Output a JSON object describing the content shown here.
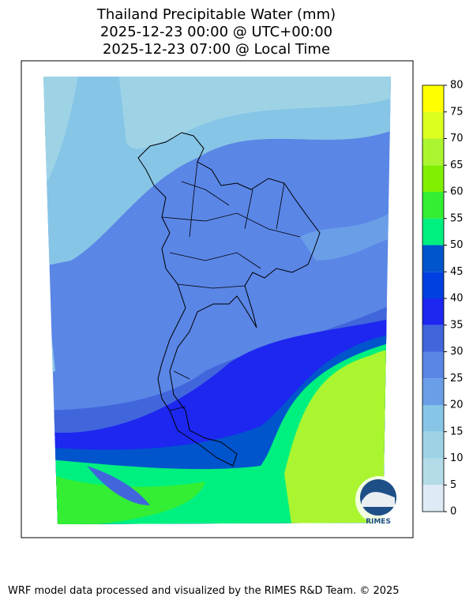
{
  "title_lines": [
    "Thailand Precipitable Water (mm)",
    "2025-12-23 00:00 @ UTC+00:00",
    "2025-12-23 07:00 @ Local Time"
  ],
  "colorbar": {
    "levels": [
      0,
      5,
      10,
      15,
      20,
      25,
      30,
      35,
      40,
      45,
      50,
      55,
      60,
      65,
      70,
      75,
      80
    ],
    "colors": [
      "#deebf7",
      "#b4dbe8",
      "#9ed3e6",
      "#86c5e6",
      "#6a9fe8",
      "#5a86e6",
      "#4166dc",
      "#1d27f0",
      "#0040e0",
      "#0055cc",
      "#00f080",
      "#33ee33",
      "#80f000",
      "#aaf530",
      "#ddff20",
      "#ffff00",
      "#ffcc00"
    ]
  },
  "logo": "RIMES",
  "footer": "WRF model data processed and visualized by the RIMES R&D Team. © 2025"
}
